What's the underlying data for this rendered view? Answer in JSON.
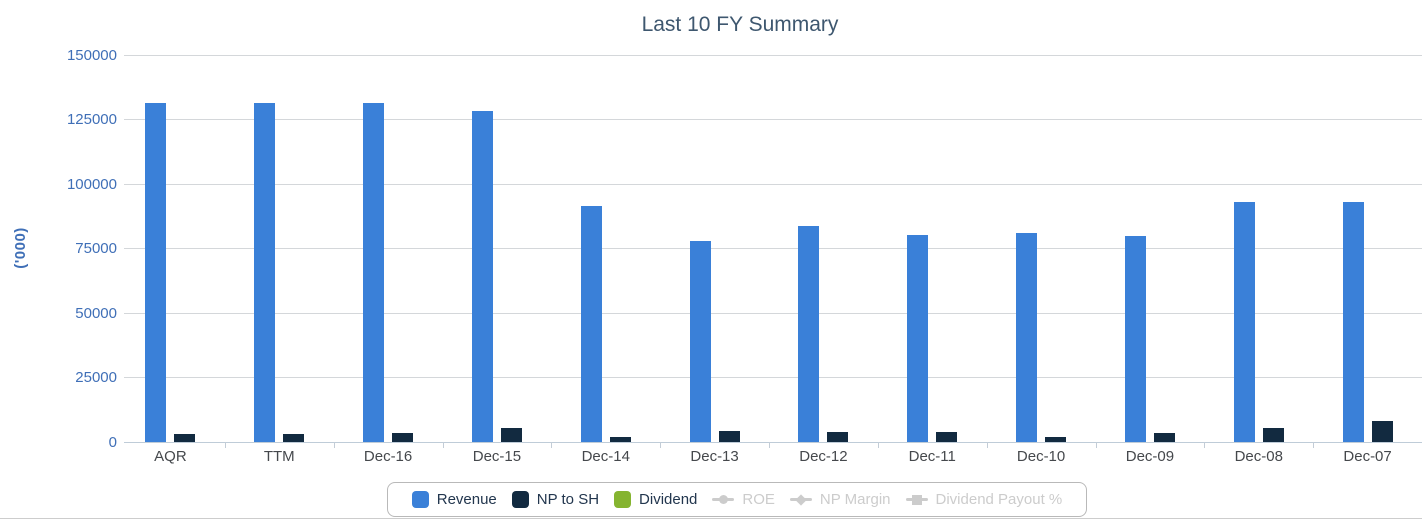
{
  "chart_data": {
    "type": "bar",
    "title": "Last 10 FY Summary",
    "ylabel": "('000)",
    "xlabel": "",
    "ylim": [
      0,
      150000
    ],
    "y_ticks": [
      0,
      25000,
      50000,
      75000,
      100000,
      125000,
      150000
    ],
    "grid": true,
    "legend_position": "bottom-center",
    "categories": [
      "AQR",
      "TTM",
      "Dec-16",
      "Dec-15",
      "Dec-14",
      "Dec-13",
      "Dec-12",
      "Dec-11",
      "Dec-10",
      "Dec-09",
      "Dec-08",
      "Dec-07"
    ],
    "series": [
      {
        "name": "Revenue",
        "type": "column",
        "color": "#3a80d8",
        "visible": true,
        "values": [
          131500,
          131500,
          131500,
          128500,
          91500,
          78000,
          84000,
          80500,
          81000,
          80000,
          93000,
          93000
        ]
      },
      {
        "name": "NP to SH",
        "type": "column",
        "color": "#122a40",
        "visible": true,
        "values": [
          3200,
          3200,
          3600,
          5500,
          1800,
          4200,
          3700,
          4000,
          1800,
          3300,
          5500,
          8000
        ]
      },
      {
        "name": "Dividend",
        "type": "column",
        "color": "#85b430",
        "visible": true,
        "values": []
      },
      {
        "name": "ROE",
        "type": "line",
        "marker": "circle",
        "color": "#cccccc",
        "visible": false
      },
      {
        "name": "NP Margin",
        "type": "line",
        "marker": "diamond",
        "color": "#cccccc",
        "visible": false
      },
      {
        "name": "Dividend Payout %",
        "type": "line",
        "marker": "square",
        "color": "#cccccc",
        "visible": false
      }
    ]
  },
  "colors": {
    "title_text": "#3e576f",
    "y_axis_text": "#3f6fb7",
    "x_axis_text": "#45484c",
    "gridline": "#d4d7da",
    "disabled_legend": "#cccccc"
  }
}
